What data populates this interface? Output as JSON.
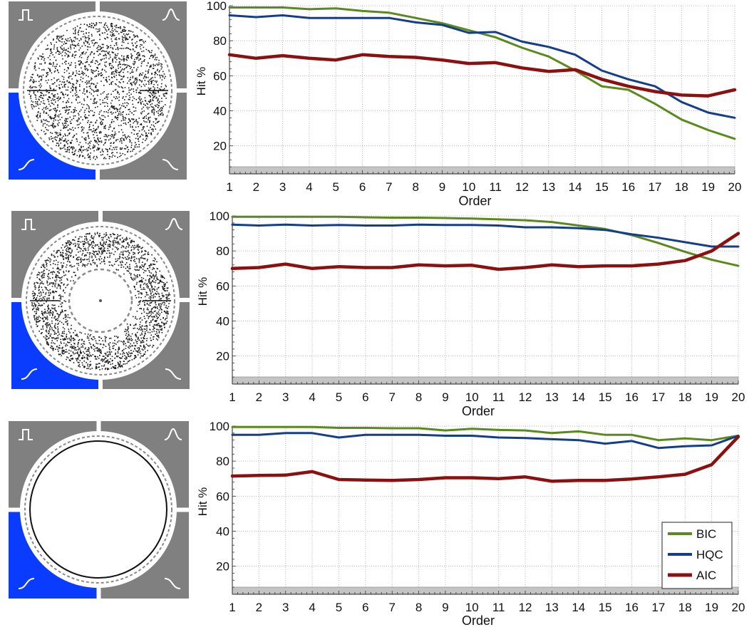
{
  "colors": {
    "tile_gray": "#808080",
    "tile_blue": "#0a3cff",
    "ring_white": "#ffffff",
    "dot_dark": "#1a1a1a",
    "dash_gray": "#8a8a8a",
    "plot_grid": "#b8b8b8",
    "baseline_band": "#c4c4c4",
    "BIC": "#5a8a1e",
    "HQC": "#153e8a",
    "AIC": "#8b1010"
  },
  "icons": {
    "top_left": "rectangular-pulse-icon",
    "top_right": "gaussian-bump-icon",
    "bottom_left": "rising-sigmoid-icon",
    "bottom_right": "falling-sigmoid-icon"
  },
  "chart_data": [
    {
      "type": "line",
      "title": "",
      "xlabel": "Order",
      "ylabel": "Hit %",
      "xlim": [
        1,
        20
      ],
      "ylim": [
        4,
        100
      ],
      "x_ticks": [
        1,
        2,
        3,
        4,
        5,
        6,
        7,
        8,
        9,
        10,
        11,
        12,
        13,
        14,
        15,
        16,
        17,
        18,
        19,
        20
      ],
      "y_ticks": [
        20,
        40,
        60,
        80,
        100
      ],
      "grid": true,
      "legend": false,
      "thumbnail": "scattered-ring",
      "x": [
        1,
        2,
        3,
        4,
        5,
        6,
        7,
        8,
        9,
        10,
        11,
        12,
        13,
        14,
        15,
        16,
        17,
        18,
        19,
        20
      ],
      "series": [
        {
          "name": "BIC",
          "values": [
            99,
            99,
            99,
            98,
            98.5,
            97,
            96,
            93,
            90,
            86,
            82,
            76,
            71,
            63,
            54,
            52,
            44,
            35,
            29,
            24
          ]
        },
        {
          "name": "HQC",
          "values": [
            94.5,
            93.5,
            94.5,
            93,
            93,
            93,
            93,
            90.5,
            89,
            84.5,
            85,
            79.5,
            76.5,
            72,
            63,
            58,
            54,
            45,
            39,
            36
          ]
        },
        {
          "name": "AIC",
          "values": [
            72,
            70,
            71.5,
            70,
            69,
            72,
            71,
            70.5,
            69,
            67,
            67.5,
            64.5,
            62.5,
            63.5,
            58,
            54,
            51,
            49,
            48.5,
            52
          ]
        }
      ]
    },
    {
      "type": "line",
      "title": "",
      "xlabel": "Order",
      "ylabel": "Hit %",
      "xlim": [
        1,
        20
      ],
      "ylim": [
        4,
        100
      ],
      "x_ticks": [
        1,
        2,
        3,
        4,
        5,
        6,
        7,
        8,
        9,
        10,
        11,
        12,
        13,
        14,
        15,
        16,
        17,
        18,
        19,
        20
      ],
      "y_ticks": [
        20,
        40,
        60,
        80,
        100
      ],
      "grid": true,
      "legend": false,
      "thumbnail": "thick-ring-inner-circle",
      "x": [
        1,
        2,
        3,
        4,
        5,
        6,
        7,
        8,
        9,
        10,
        11,
        12,
        13,
        14,
        15,
        16,
        17,
        18,
        19,
        20
      ],
      "series": [
        {
          "name": "BIC",
          "values": [
            99.5,
            99.5,
            99.5,
            99.5,
            99.5,
            99.2,
            99,
            99,
            98.8,
            98.5,
            98,
            97.5,
            96.5,
            94.5,
            92.5,
            89,
            84.5,
            79.5,
            75,
            71.5
          ]
        },
        {
          "name": "HQC",
          "values": [
            95,
            94.5,
            95,
            94.5,
            94.8,
            94.5,
            94.5,
            95,
            94.8,
            94.8,
            94.5,
            93.5,
            93.5,
            93,
            92,
            89.5,
            87.5,
            85,
            82.5,
            82.5
          ]
        },
        {
          "name": "AIC",
          "values": [
            70,
            70.5,
            72.5,
            70,
            71,
            70.5,
            70.5,
            72,
            71.5,
            71.8,
            69.5,
            70.5,
            72,
            71,
            71.5,
            71.5,
            72.5,
            74.5,
            80,
            90
          ]
        }
      ]
    },
    {
      "type": "line",
      "title": "",
      "xlabel": "Order",
      "ylabel": "Hit %",
      "xlim": [
        1,
        20
      ],
      "ylim": [
        4,
        100
      ],
      "x_ticks": [
        1,
        2,
        3,
        4,
        5,
        6,
        7,
        8,
        9,
        10,
        11,
        12,
        13,
        14,
        15,
        16,
        17,
        18,
        19,
        20
      ],
      "y_ticks": [
        20,
        40,
        60,
        80,
        100
      ],
      "grid": true,
      "legend": true,
      "legend_position": "bottom-right",
      "thumbnail": "thin-ring",
      "x": [
        1,
        2,
        3,
        4,
        5,
        6,
        7,
        8,
        9,
        10,
        11,
        12,
        13,
        14,
        15,
        16,
        17,
        18,
        19,
        20
      ],
      "series": [
        {
          "name": "BIC",
          "values": [
            99.5,
            99.5,
            99.5,
            99.5,
            99,
            99,
            98.8,
            98.8,
            97.5,
            98.5,
            97.8,
            97.5,
            96,
            97,
            95,
            95,
            92,
            93,
            92,
            94.5
          ]
        },
        {
          "name": "HQC",
          "values": [
            95,
            95,
            96,
            96,
            93.5,
            95,
            95,
            95,
            94.5,
            94.5,
            93.5,
            93.2,
            92.5,
            92,
            90,
            91.5,
            87.5,
            88.5,
            89,
            94.5
          ]
        },
        {
          "name": "AIC",
          "values": [
            71.5,
            71.8,
            72,
            74,
            69.5,
            69.2,
            69,
            69.5,
            70.5,
            70.5,
            70,
            71,
            68.5,
            69,
            69,
            69.8,
            71,
            72.5,
            78,
            94
          ]
        }
      ]
    }
  ]
}
